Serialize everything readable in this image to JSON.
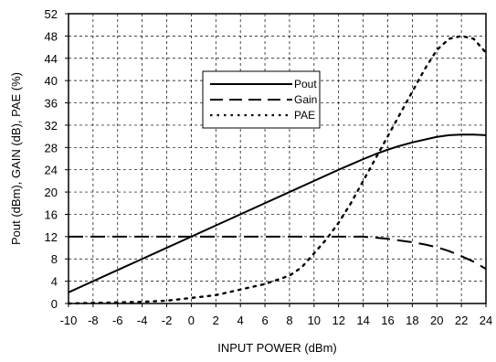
{
  "chart_data": {
    "type": "line",
    "xlabel": "INPUT POWER (dBm)",
    "ylabel": "Pout (dBm), GAIN (dB), PAE (%)",
    "xlim": [
      -10,
      24
    ],
    "ylim": [
      0,
      52
    ],
    "xticks": [
      -10,
      -8,
      -6,
      -4,
      -2,
      0,
      2,
      4,
      6,
      8,
      10,
      12,
      14,
      16,
      18,
      20,
      22,
      24
    ],
    "yticks": [
      0,
      4,
      8,
      12,
      16,
      20,
      24,
      28,
      32,
      36,
      40,
      44,
      48,
      52
    ],
    "grid": true,
    "legend_position": "upper-center",
    "series": [
      {
        "name": "Pout",
        "style": "solid",
        "color": "#000000",
        "x": [
          -10,
          -8,
          -6,
          -4,
          -2,
          0,
          2,
          4,
          6,
          8,
          10,
          12,
          14,
          15,
          16,
          17,
          18,
          19,
          20,
          21,
          22,
          23,
          24
        ],
        "y": [
          2,
          4,
          6,
          8,
          10,
          12,
          14,
          16,
          18,
          20,
          22,
          24,
          25.9,
          26.8,
          27.6,
          28.3,
          28.9,
          29.4,
          29.9,
          30.2,
          30.3,
          30.3,
          30.2
        ]
      },
      {
        "name": "Gain",
        "style": "dashed",
        "color": "#000000",
        "x": [
          -10,
          -6,
          -2,
          0,
          2,
          6,
          10,
          12,
          14,
          16,
          17,
          18,
          19,
          20,
          21,
          22,
          23,
          24
        ],
        "y": [
          12,
          12,
          12,
          12,
          12,
          12,
          12,
          12,
          12,
          11.6,
          11.3,
          11,
          10.6,
          10.1,
          9.4,
          8.5,
          7.5,
          6.2
        ]
      },
      {
        "name": "PAE",
        "style": "dotted",
        "color": "#000000",
        "x": [
          -10,
          -8,
          -6,
          -4,
          -2,
          0,
          2,
          4,
          6,
          8,
          9,
          10,
          11,
          12,
          13,
          14,
          15,
          16,
          17,
          18,
          19,
          20,
          21,
          22,
          23,
          24
        ],
        "y": [
          0,
          0.1,
          0.2,
          0.3,
          0.5,
          1,
          1.5,
          2.5,
          3.5,
          5,
          6.5,
          9,
          11.5,
          14.5,
          18,
          22,
          26,
          30,
          34,
          38,
          42,
          45.5,
          47.5,
          48,
          47.5,
          45
        ]
      }
    ]
  }
}
